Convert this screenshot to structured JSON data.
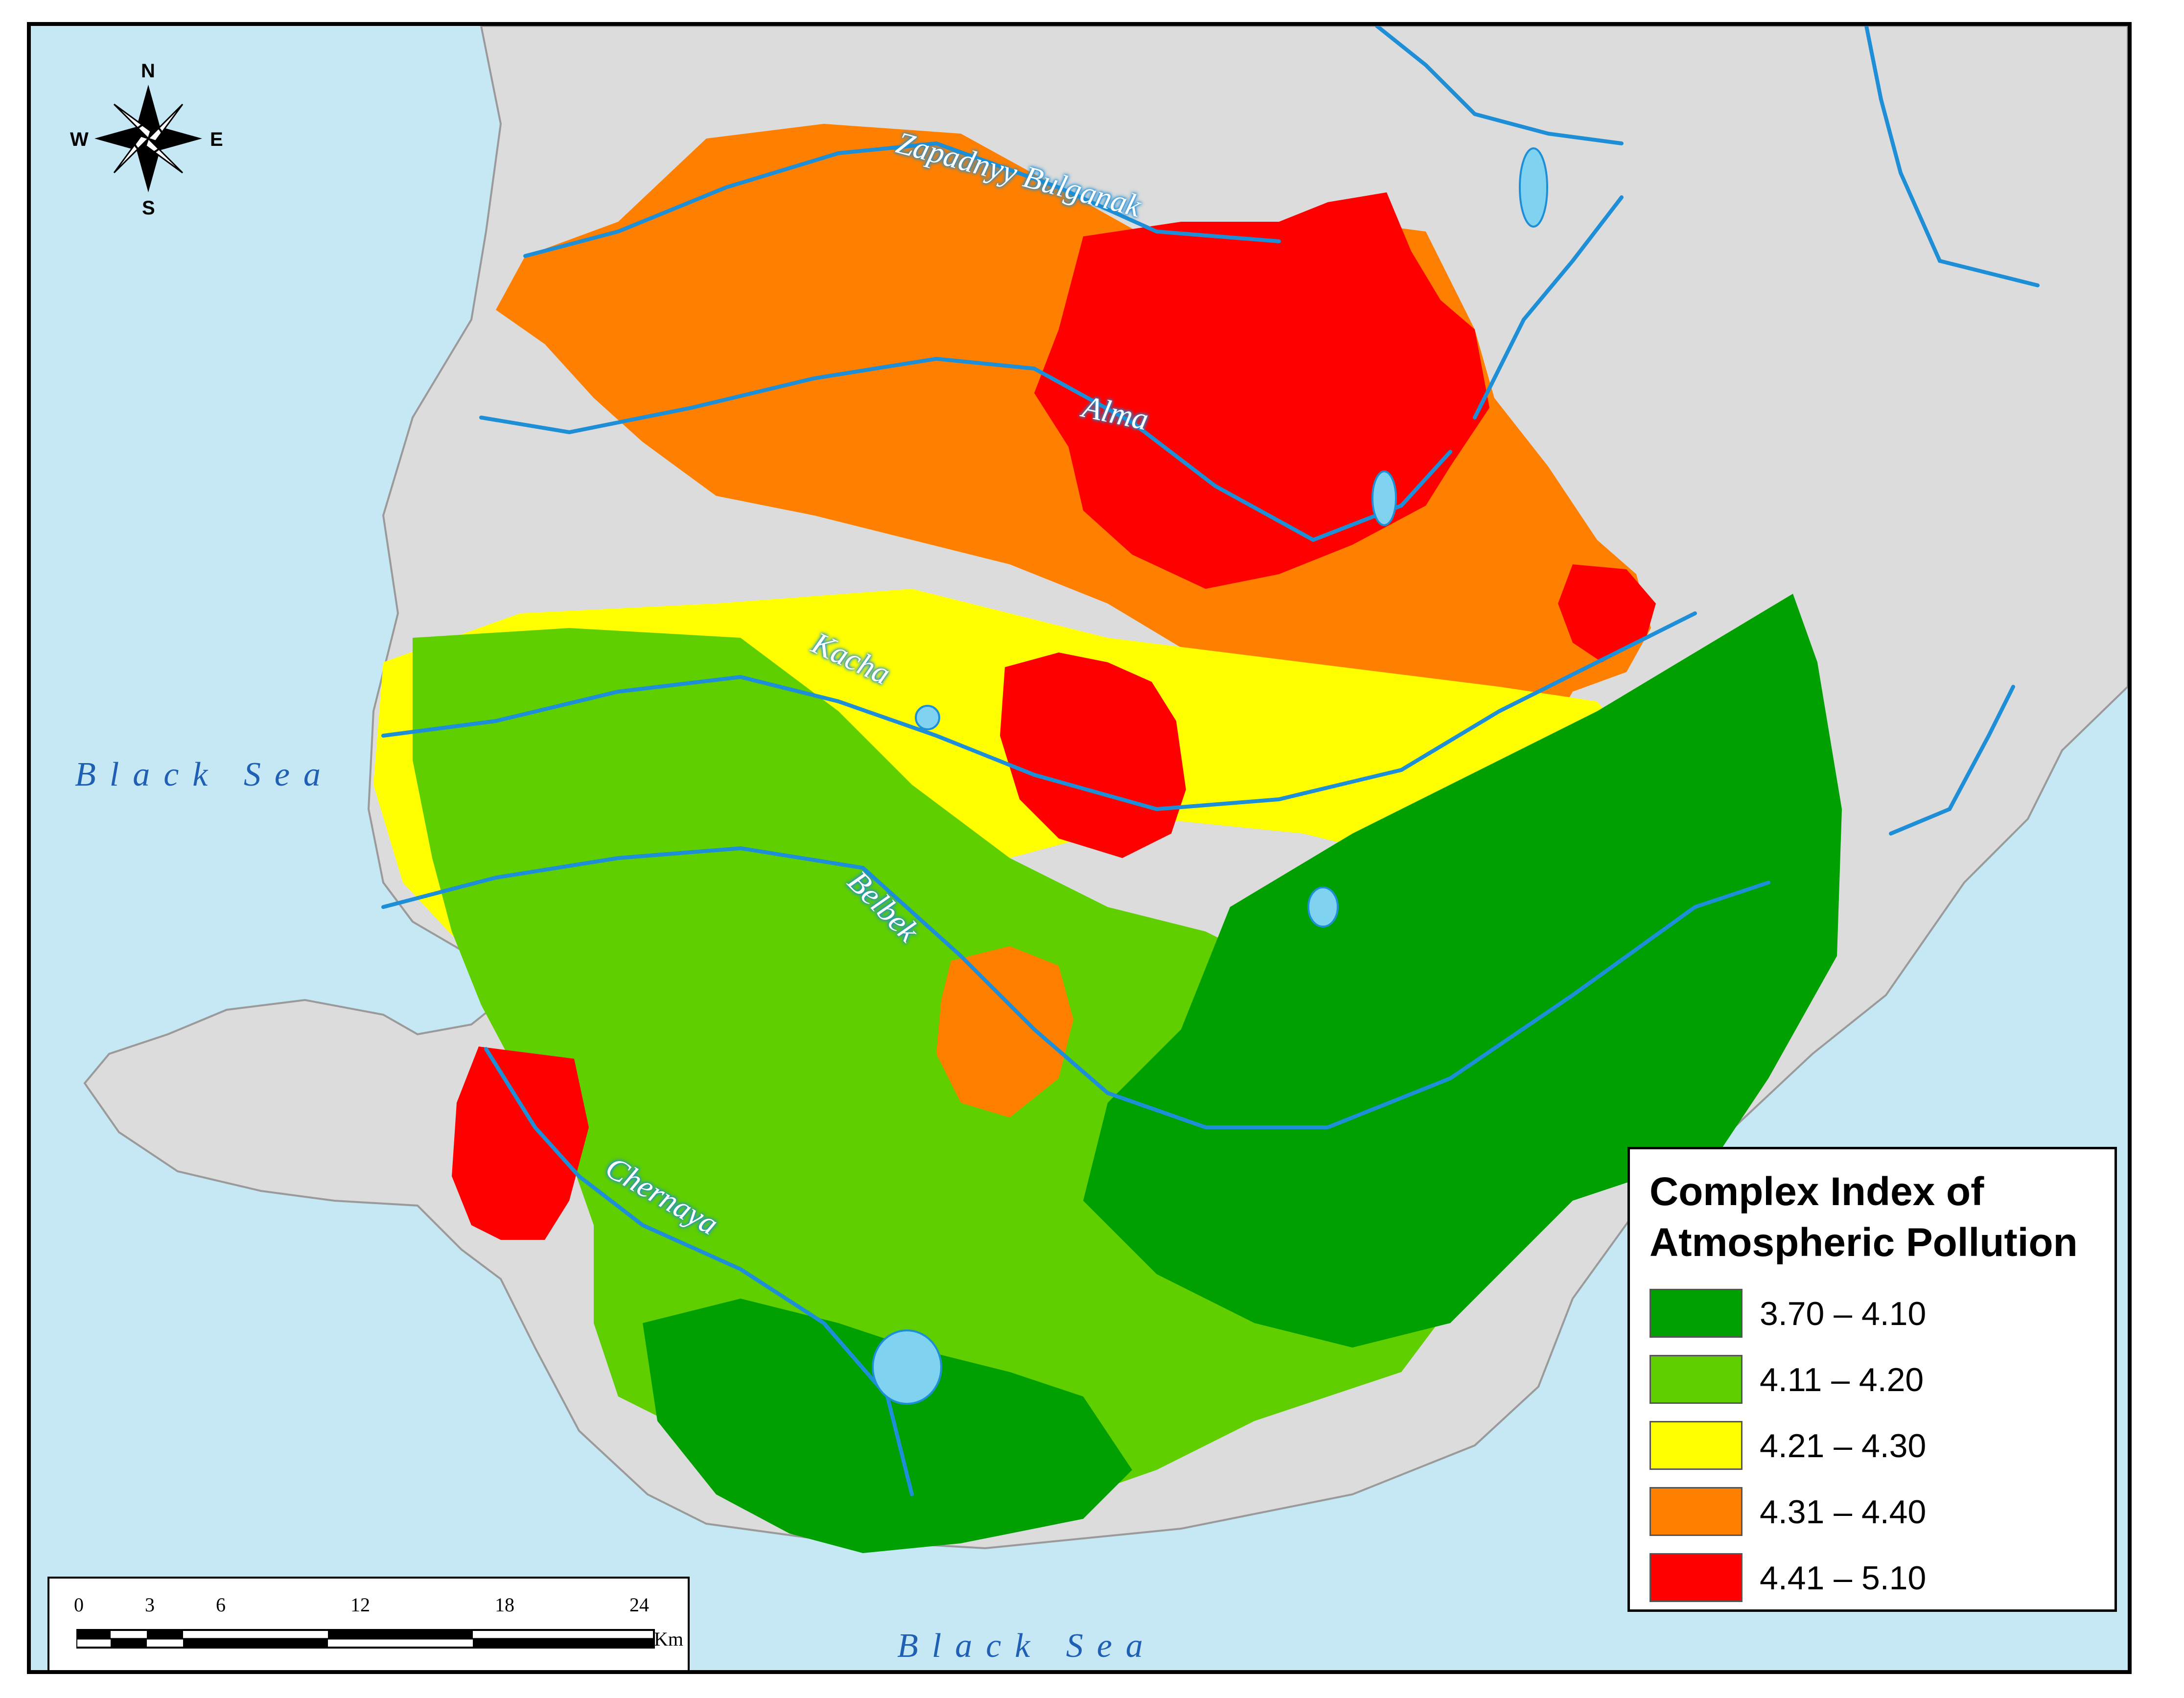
{
  "sea_labels": {
    "west": "Black Sea",
    "south": "Black Sea"
  },
  "rivers": [
    {
      "name": "Zapadnyy Bulganak"
    },
    {
      "name": "Alma"
    },
    {
      "name": "Kacha"
    },
    {
      "name": "Belbek"
    },
    {
      "name": "Chernaya"
    }
  ],
  "compass": {
    "n": "N",
    "s": "S",
    "e": "E",
    "w": "W"
  },
  "legend": {
    "title": "Complex Index of\nAtmospheric Pollution",
    "classes": [
      {
        "label": "3.70 – 4.10",
        "color": "#00a000"
      },
      {
        "label": "4.11 – 4.20",
        "color": "#5fcf00"
      },
      {
        "label": "4.21 – 4.30",
        "color": "#ffff00"
      },
      {
        "label": "4.31 – 4.40",
        "color": "#ff8000"
      },
      {
        "label": "4.41 – 5.10",
        "color": "#ff0000"
      }
    ]
  },
  "scale_bar": {
    "ticks": [
      "0",
      "3",
      "6",
      "12",
      "18",
      "24"
    ],
    "unit": "Km"
  },
  "colors": {
    "sea": "#c6e8f5",
    "land": "#dcdcdc",
    "river": "#1e8fd6",
    "lake": "#7fd3f0"
  }
}
